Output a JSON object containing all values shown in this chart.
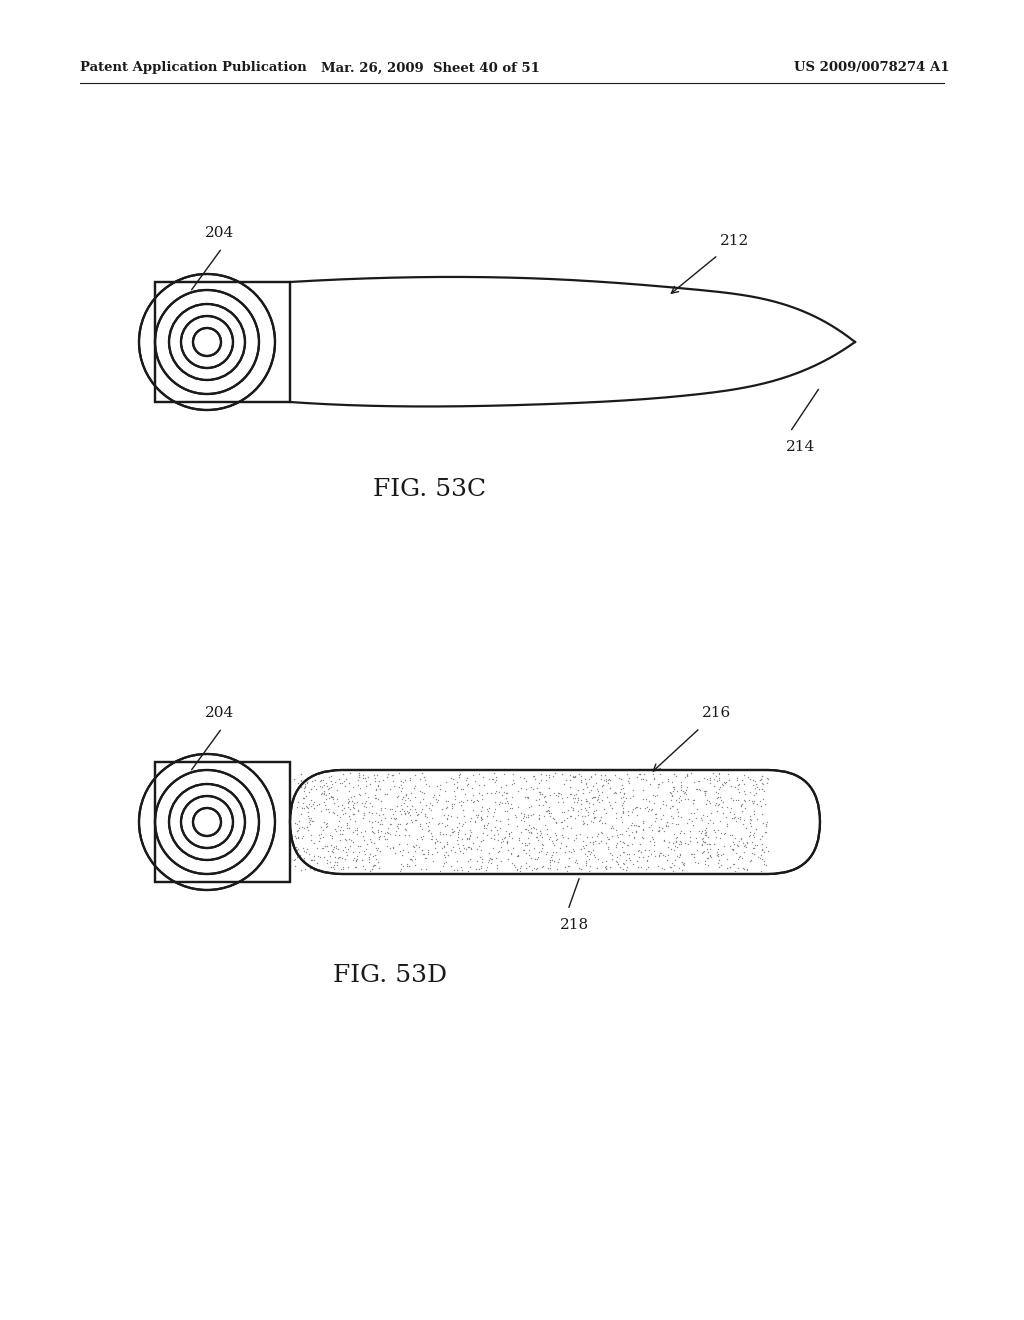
{
  "bg_color": "#ffffff",
  "line_color": "#1a1a1a",
  "header_left": "Patent Application Publication",
  "header_mid": "Mar. 26, 2009  Sheet 40 of 51",
  "header_right": "US 2009/0078274 A1",
  "fig1_label": "FIG. 53C",
  "fig2_label": "FIG. 53D",
  "label_204_1": "204",
  "label_212": "212",
  "label_214": "214",
  "label_204_2": "204",
  "label_216": "216",
  "label_218": "218"
}
